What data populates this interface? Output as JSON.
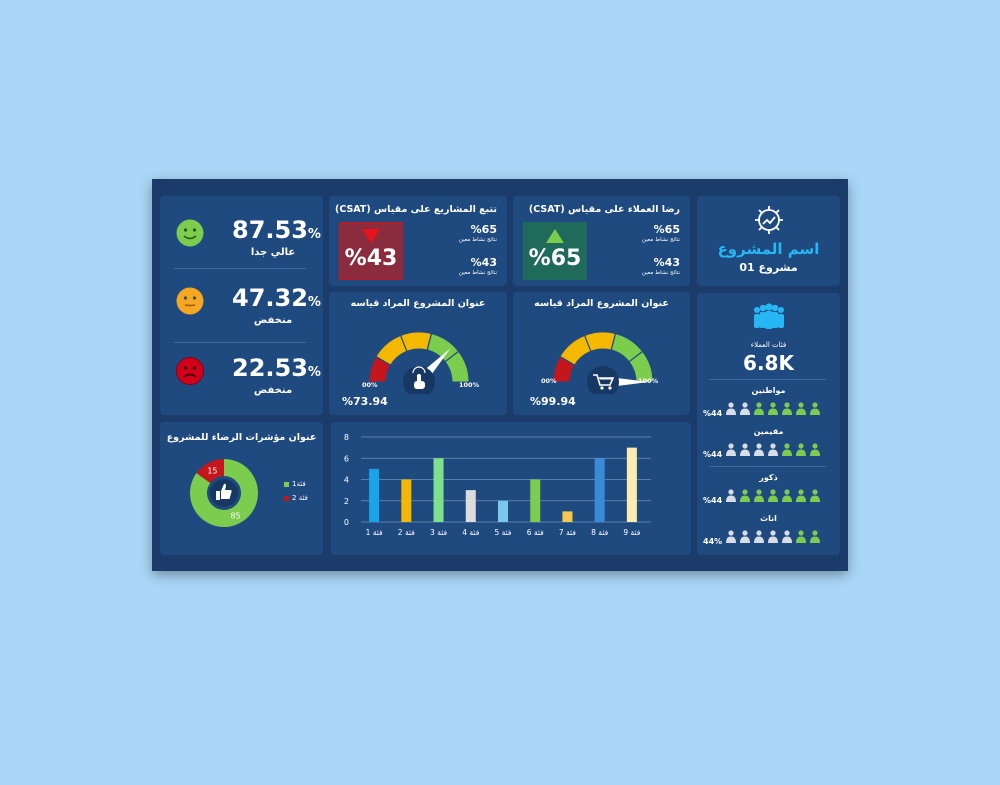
{
  "project": {
    "title": "اسم المشروع",
    "subtitle": "مشروع 01",
    "icon": "gear-chart-icon"
  },
  "customers": {
    "icon": "people-group-icon",
    "caption": "فئات العملاء",
    "total": "6.8K",
    "segments": [
      {
        "label": "مواطنين",
        "pct": "%44",
        "active": 5
      },
      {
        "label": "مقيمين",
        "pct": "%44",
        "active": 3
      },
      {
        "label": "ذكور",
        "pct": "%44",
        "active": 6
      },
      {
        "label": "اناث",
        "pct": "44%",
        "active": 2
      }
    ]
  },
  "csat_customers": {
    "title": "رضا العملاء على مقياس (CSAT)",
    "big_value": "%65",
    "trend": "up",
    "color": "#1f6a5a",
    "stat1_value": "%65",
    "stat1_label": "نتائج نشاط معين",
    "stat2_value": "%43",
    "stat2_label": "نتائج نشاط معين"
  },
  "csat_projects": {
    "title": "تتبع المشاريع على مقياس (CSAT)",
    "big_value": "%43",
    "trend": "down",
    "color": "#8a2b3e",
    "stat1_value": "%65",
    "stat1_label": "نتائج نشاط معين",
    "stat2_value": "%43",
    "stat2_label": "نتائج نشاط معين"
  },
  "gauge_right": {
    "title": "عنوان المشروع المراد قياسه",
    "min_label": "00%",
    "max_label": "100%",
    "value_label": "%99.94",
    "value": 99.94,
    "icon": "shopping-cart-icon"
  },
  "gauge_left": {
    "title": "عنوان المشروع المراد قياسه",
    "min_label": "00%",
    "max_label": "100%",
    "value_label": "%73.94",
    "value": 73.94,
    "icon": "touch-hand-icon"
  },
  "satisfaction": [
    {
      "value": "87.53",
      "suffix": "%",
      "label": "عالي جدا",
      "icon": "smiley-happy-icon",
      "color": "#7ccc4e"
    },
    {
      "value": "47.32",
      "suffix": "%",
      "label": "منخفض",
      "icon": "smiley-neutral-icon",
      "color": "#f5a623"
    },
    {
      "value": "22.53",
      "suffix": "%",
      "label": "منخفض",
      "icon": "smiley-sad-icon",
      "color": "#d0021b"
    }
  ],
  "donut": {
    "title": "عنوان مؤشرات الرضاء للمشروع",
    "icon": "thumbs-up-icon",
    "legend": [
      "فئة1",
      "فئة 2"
    ],
    "chart_data": {
      "type": "pie",
      "categories": [
        "فئة1",
        "فئة 2"
      ],
      "values": [
        85,
        15
      ],
      "colors": [
        "#7ccc4e",
        "#c4161c"
      ]
    }
  },
  "chart_data": {
    "type": "bar",
    "categories": [
      "فئة 1",
      "فئة 2",
      "فئة 3",
      "فئة 4",
      "فئة 5",
      "فئة 6",
      "فئة 7",
      "فئة 8",
      "فئة 9"
    ],
    "values": [
      5,
      4,
      6,
      3,
      2,
      4,
      1,
      6,
      7
    ],
    "colors": [
      "#1aa3e8",
      "#f5b800",
      "#7ee08a",
      "#dcdcdc",
      "#7cc8ec",
      "#7ccc4e",
      "#f2c94c",
      "#3a8ad6",
      "#fbecb0"
    ],
    "yticks": [
      "0",
      "2",
      "4",
      "6",
      "8"
    ],
    "ylim": [
      0,
      8
    ],
    "grid": true
  }
}
